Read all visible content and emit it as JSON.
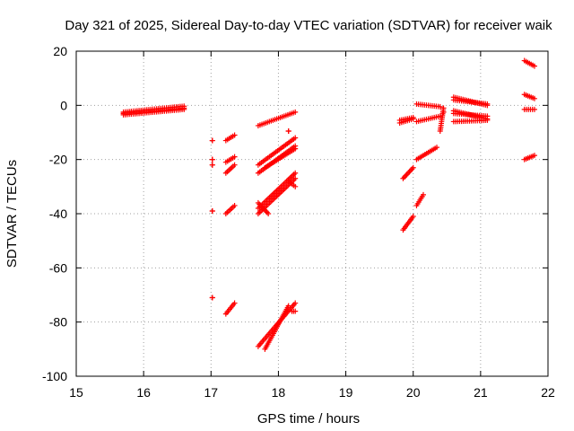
{
  "chart_data": {
    "type": "scatter",
    "title": "Day 321 of 2025, Sidereal Day-to-day VTEC variation (SDTVAR) for receiver waik",
    "xlabel": "GPS time / hours",
    "ylabel": "SDTVAR / TECUs",
    "xlim": [
      15,
      22
    ],
    "ylim": [
      -100,
      20
    ],
    "xticks": [
      15,
      16,
      17,
      18,
      19,
      20,
      21,
      22
    ],
    "yticks": [
      -100,
      -80,
      -60,
      -40,
      -20,
      0,
      20
    ],
    "grid": true,
    "marker": "+",
    "color": "#ff0000",
    "segments": [
      {
        "x": [
          15.7,
          16.6
        ],
        "y": [
          -3,
          -1
        ]
      },
      {
        "x": [
          15.7,
          16.6
        ],
        "y": [
          -2.5,
          -0.3
        ]
      },
      {
        "x": [
          15.7,
          16.6
        ],
        "y": [
          -3.5,
          -1.5
        ]
      },
      {
        "x": [
          17.02,
          17.02
        ],
        "y": [
          -13,
          -13
        ]
      },
      {
        "x": [
          17.02,
          17.02
        ],
        "y": [
          -20,
          -20
        ]
      },
      {
        "x": [
          17.02,
          17.02
        ],
        "y": [
          -22,
          -22
        ]
      },
      {
        "x": [
          17.02,
          17.02
        ],
        "y": [
          -39,
          -39
        ]
      },
      {
        "x": [
          17.02,
          17.02
        ],
        "y": [
          -71,
          -71
        ]
      },
      {
        "x": [
          17.22,
          17.35
        ],
        "y": [
          -13,
          -11
        ]
      },
      {
        "x": [
          17.22,
          17.35
        ],
        "y": [
          -21,
          -19
        ]
      },
      {
        "x": [
          17.22,
          17.35
        ],
        "y": [
          -25,
          -22
        ]
      },
      {
        "x": [
          17.22,
          17.35
        ],
        "y": [
          -40,
          -37
        ]
      },
      {
        "x": [
          17.22,
          17.35
        ],
        "y": [
          -77,
          -73
        ]
      },
      {
        "x": [
          17.7,
          18.25
        ],
        "y": [
          -7.5,
          -2.5
        ]
      },
      {
        "x": [
          17.7,
          18.25
        ],
        "y": [
          -22,
          -12
        ]
      },
      {
        "x": [
          17.7,
          18.25
        ],
        "y": [
          -25,
          -15
        ]
      },
      {
        "x": [
          17.8,
          18.25
        ],
        "y": [
          -23,
          -16
        ]
      },
      {
        "x": [
          18.15,
          18.25
        ],
        "y": [
          -28,
          -30
        ]
      },
      {
        "x": [
          18.15,
          18.15
        ],
        "y": [
          -9.5,
          -9.5
        ]
      },
      {
        "x": [
          17.7,
          18.25
        ],
        "y": [
          -40,
          -27
        ]
      },
      {
        "x": [
          17.7,
          18.25
        ],
        "y": [
          -38,
          -25
        ]
      },
      {
        "x": [
          17.7,
          17.85
        ],
        "y": [
          -36,
          -40
        ]
      },
      {
        "x": [
          17.7,
          18.25
        ],
        "y": [
          -89,
          -73
        ]
      },
      {
        "x": [
          17.8,
          18.15
        ],
        "y": [
          -90,
          -74
        ]
      },
      {
        "x": [
          18.2,
          18.25
        ],
        "y": [
          -76,
          -76
        ]
      },
      {
        "x": [
          19.8,
          20.0
        ],
        "y": [
          -6.5,
          -5
        ]
      },
      {
        "x": [
          19.8,
          20.0
        ],
        "y": [
          -5.5,
          -4.5
        ]
      },
      {
        "x": [
          19.85,
          20.0
        ],
        "y": [
          -27,
          -23
        ]
      },
      {
        "x": [
          19.85,
          20.0
        ],
        "y": [
          -46,
          -41
        ]
      },
      {
        "x": [
          20.05,
          20.35
        ],
        "y": [
          -20,
          -15.5
        ]
      },
      {
        "x": [
          20.05,
          20.15
        ],
        "y": [
          -37,
          -33
        ]
      },
      {
        "x": [
          20.05,
          20.4
        ],
        "y": [
          0.5,
          -0.5
        ]
      },
      {
        "x": [
          20.05,
          20.4
        ],
        "y": [
          -6,
          -4
        ]
      },
      {
        "x": [
          20.4,
          20.45
        ],
        "y": [
          -9.5,
          -1
        ]
      },
      {
        "x": [
          20.45,
          20.45
        ],
        "y": [
          -2.5,
          -2.5
        ]
      },
      {
        "x": [
          20.6,
          21.1
        ],
        "y": [
          3,
          0
        ]
      },
      {
        "x": [
          20.6,
          21.1
        ],
        "y": [
          2,
          0.5
        ]
      },
      {
        "x": [
          20.6,
          21.1
        ],
        "y": [
          -2,
          -5
        ]
      },
      {
        "x": [
          20.6,
          21.1
        ],
        "y": [
          -3,
          -4
        ]
      },
      {
        "x": [
          20.6,
          21.1
        ],
        "y": [
          -6,
          -5.5
        ]
      },
      {
        "x": [
          21.65,
          21.8
        ],
        "y": [
          16.5,
          14.5
        ]
      },
      {
        "x": [
          21.65,
          21.8
        ],
        "y": [
          4,
          2.5
        ]
      },
      {
        "x": [
          21.65,
          21.8
        ],
        "y": [
          -1.5,
          -1.5
        ]
      },
      {
        "x": [
          21.65,
          21.8
        ],
        "y": [
          -20,
          -18.5
        ]
      }
    ]
  }
}
